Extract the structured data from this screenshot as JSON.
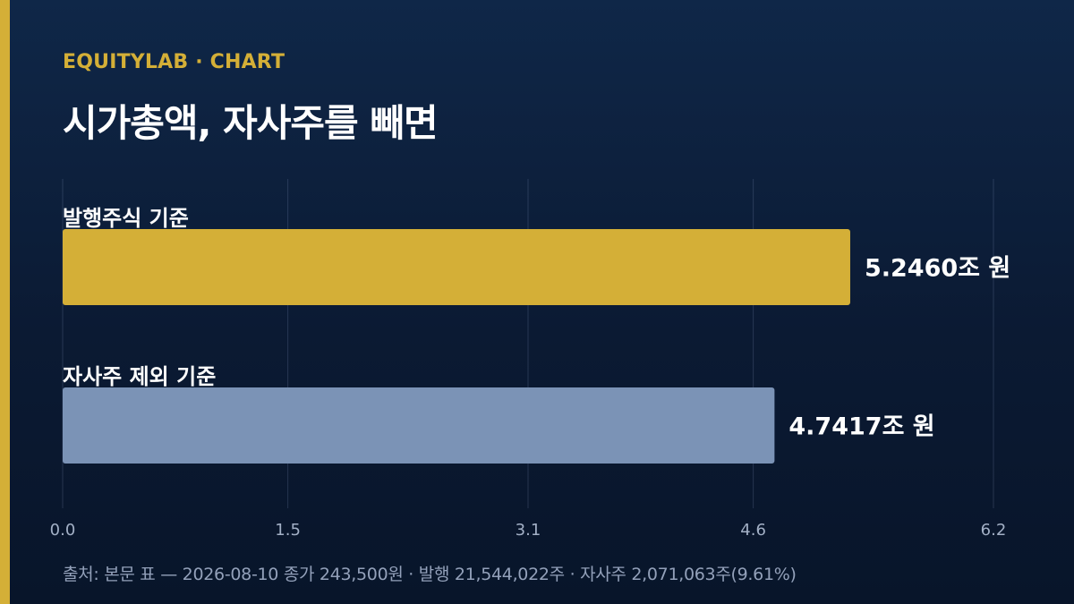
{
  "header": {
    "brand": "EQUITYLAB · CHART",
    "title": "시가총액, 자사주를 빼면"
  },
  "colors": {
    "accent": "#d4af37",
    "background": "#0b1a33",
    "bar_secondary": "#7b93b6"
  },
  "chart_data": {
    "type": "bar",
    "orientation": "horizontal",
    "categories": [
      "발행주식 기준",
      "자사주 제외 기준"
    ],
    "values": [
      5.246,
      4.7417
    ],
    "value_labels": [
      "5.2460조 원",
      "4.7417조 원"
    ],
    "bar_colors": [
      "#d4af37",
      "#7b93b6"
    ],
    "x_ticks": [
      "0.0",
      "1.5",
      "3.1",
      "4.6",
      "6.2"
    ],
    "xlim": [
      0,
      6.2
    ],
    "grid": true
  },
  "footer": {
    "source": "출처: 본문 표 — 2026-08-10 종가 243,500원 · 발행 21,544,022주 · 자사주 2,071,063주(9.61%)"
  }
}
